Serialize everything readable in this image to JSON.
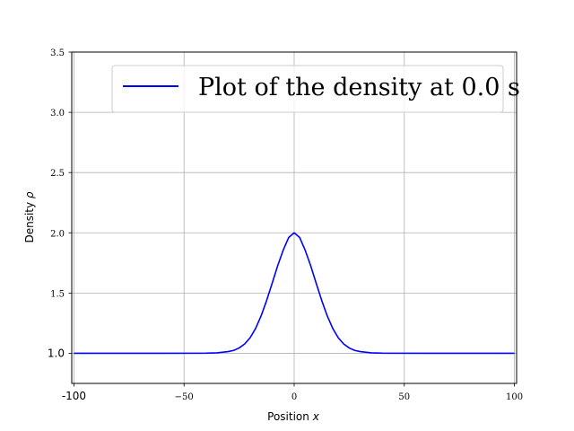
{
  "chart_data": {
    "type": "line",
    "title": "",
    "xlabel": "Position",
    "xlabel_symbol": "x",
    "ylabel": "Density",
    "ylabel_symbol": "ρ",
    "xlim": [
      -101,
      101
    ],
    "ylim": [
      0.75,
      3.5
    ],
    "grid": true,
    "legend_placement": "top-right",
    "x_ticks": [
      {
        "value": -100,
        "label": "-100"
      },
      {
        "value": -50,
        "label": "−50"
      },
      {
        "value": 0,
        "label": "0"
      },
      {
        "value": 50,
        "label": "50"
      },
      {
        "value": 100,
        "label": "100"
      }
    ],
    "y_ticks": [
      {
        "value": 1.0,
        "label": "1.0"
      },
      {
        "value": 1.5,
        "label": "1.5"
      },
      {
        "value": 2.0,
        "label": "2.0"
      },
      {
        "value": 2.5,
        "label": "2.5"
      },
      {
        "value": 3.0,
        "label": "3.0"
      },
      {
        "value": 3.5,
        "label": "3.5"
      }
    ],
    "series": [
      {
        "name": "Plot of the density at 0.0 s",
        "color": "#0000ff",
        "x": [
          -100,
          -60,
          -40,
          -35,
          -30,
          -27.5,
          -25,
          -22.5,
          -20,
          -17.5,
          -15,
          -12.5,
          -10,
          -7.5,
          -5,
          -2.5,
          0,
          2.5,
          5,
          7.5,
          10,
          12.5,
          15,
          17.5,
          20,
          22.5,
          25,
          27.5,
          30,
          35,
          40,
          60,
          100
        ],
        "y": [
          1.0,
          1.0,
          1.001,
          1.004,
          1.014,
          1.024,
          1.044,
          1.077,
          1.129,
          1.207,
          1.311,
          1.439,
          1.581,
          1.726,
          1.855,
          1.961,
          2.0,
          1.961,
          1.855,
          1.726,
          1.581,
          1.439,
          1.311,
          1.207,
          1.129,
          1.077,
          1.044,
          1.024,
          1.014,
          1.004,
          1.001,
          1.0,
          1.0
        ]
      }
    ]
  }
}
